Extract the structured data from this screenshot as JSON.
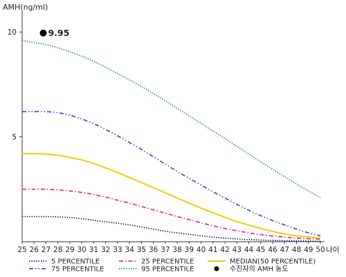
{
  "chart_data": {
    "type": "line",
    "ylabel": "AMH(ng/ml)",
    "xlabel": "나이",
    "x": [
      25,
      26,
      27,
      28,
      29,
      30,
      31,
      32,
      33,
      34,
      35,
      36,
      37,
      38,
      39,
      40,
      41,
      42,
      43,
      44,
      45,
      46,
      47,
      48,
      49,
      50
    ],
    "xlim": [
      25,
      50
    ],
    "ylim": [
      0,
      10.8
    ],
    "yticks": [
      5,
      10
    ],
    "series": [
      {
        "name": "5 PERCENTILE",
        "color": "#0a1a6b",
        "dash": "dotted",
        "values": [
          1.2,
          1.2,
          1.2,
          1.18,
          1.15,
          1.1,
          1.02,
          0.95,
          0.88,
          0.8,
          0.7,
          0.6,
          0.5,
          0.42,
          0.35,
          0.28,
          0.22,
          0.17,
          0.13,
          0.1,
          0.08,
          0.06,
          0.05,
          0.04,
          0.03,
          0.02
        ]
      },
      {
        "name": "25 PERCENTILE",
        "color": "#e0288c",
        "dash": "dashdot",
        "values": [
          2.5,
          2.5,
          2.5,
          2.47,
          2.42,
          2.35,
          2.25,
          2.12,
          1.98,
          1.84,
          1.68,
          1.52,
          1.36,
          1.2,
          1.05,
          0.9,
          0.76,
          0.63,
          0.52,
          0.42,
          0.34,
          0.27,
          0.22,
          0.17,
          0.14,
          0.12
        ]
      },
      {
        "name": "MEDIAN(50 PERCENTILE)",
        "color": "#f2cc00",
        "dash": "solid",
        "values": [
          4.2,
          4.2,
          4.18,
          4.12,
          4.02,
          3.9,
          3.73,
          3.52,
          3.3,
          3.06,
          2.82,
          2.58,
          2.33,
          2.08,
          1.84,
          1.6,
          1.38,
          1.16,
          0.96,
          0.79,
          0.63,
          0.49,
          0.37,
          0.28,
          0.22,
          0.18
        ]
      },
      {
        "name": "75 PERCENTILE",
        "color": "#3550c8",
        "dash": "dashdotdot",
        "values": [
          6.2,
          6.2,
          6.2,
          6.15,
          6.03,
          5.85,
          5.63,
          5.35,
          5.05,
          4.73,
          4.4,
          4.05,
          3.7,
          3.35,
          3.02,
          2.7,
          2.38,
          2.08,
          1.78,
          1.5,
          1.24,
          1.01,
          0.8,
          0.6,
          0.42,
          0.28
        ]
      },
      {
        "name": "95 PERCENTILE",
        "color": "#2a8a5a",
        "dash": "dotted",
        "values": [
          9.6,
          9.5,
          9.4,
          9.25,
          9.05,
          8.85,
          8.6,
          8.32,
          8.02,
          7.72,
          7.4,
          7.06,
          6.72,
          6.36,
          6.0,
          5.64,
          5.28,
          4.92,
          4.55,
          4.18,
          3.81,
          3.45,
          3.1,
          2.75,
          2.42,
          2.1
        ]
      }
    ],
    "patient": {
      "label": "수진자의 AMH 농도",
      "x": 27,
      "y": 9.95,
      "value_label": "9.95",
      "color": "#000000"
    },
    "grid": false,
    "legend_position": "bottom"
  }
}
